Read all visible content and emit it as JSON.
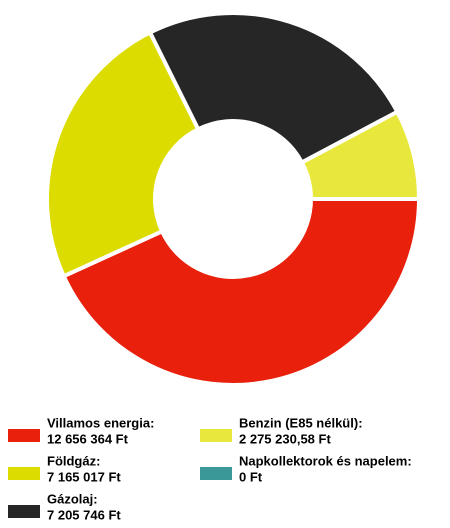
{
  "chart_data": {
    "type": "donut",
    "series": [
      {
        "name": "Villamos energia:",
        "color": "#e8200c",
        "values": [
          12656364
        ],
        "value_labels": [
          "12 656 364 Ft"
        ]
      },
      {
        "name": "Földgáz:",
        "color": "#dcdc00",
        "values": [
          7165017
        ],
        "value_labels": [
          "7 165 017 Ft"
        ]
      },
      {
        "name": "Gázolaj:",
        "color": "#262626",
        "values": [
          7205746
        ],
        "value_labels": [
          "7 205 746 Ft"
        ]
      },
      {
        "name": "Benzin (E85 nélkül):",
        "color": "#e8e83c",
        "values": [
          2275230.58
        ],
        "value_labels": [
          "2 275 230,58 Ft"
        ]
      },
      {
        "name": "Napkollektorok és napelem:",
        "color": "#3a9898",
        "values": [
          0
        ],
        "value_labels": [
          "0 Ft"
        ]
      }
    ]
  }
}
